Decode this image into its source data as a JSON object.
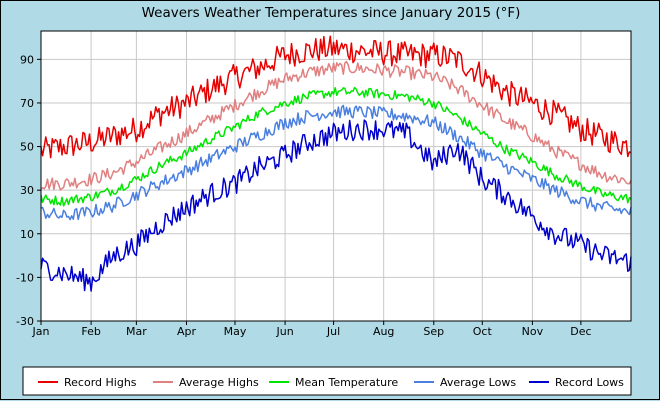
{
  "chart_data": {
    "type": "line",
    "title": "Weavers Weather Temperatures since January 2015 (°F)",
    "xlabel": "",
    "ylabel": "",
    "x_tick_labels": [
      "Jan",
      "Feb",
      "Mar",
      "Apr",
      "May",
      "Jun",
      "Jul",
      "Aug",
      "Sep",
      "Oct",
      "Nov",
      "Dec"
    ],
    "x_tick_days": [
      1,
      32,
      60,
      91,
      121,
      152,
      182,
      213,
      244,
      274,
      305,
      335
    ],
    "xlim_days": [
      1,
      366
    ],
    "y_ticks": [
      -30,
      -10,
      10,
      30,
      50,
      70,
      90
    ],
    "ylim": [
      -30,
      103
    ],
    "grid": true,
    "legend_position": "bottom",
    "series": [
      {
        "name": "Record Highs",
        "color": "#e60000",
        "days": [
          1,
          15,
          32,
          46,
          60,
          74,
          91,
          105,
          121,
          135,
          152,
          166,
          182,
          196,
          213,
          227,
          244,
          258,
          274,
          288,
          305,
          319,
          335,
          349,
          366
        ],
        "values": [
          48,
          50,
          52,
          55,
          58,
          65,
          70,
          76,
          82,
          86,
          92,
          94,
          95,
          94,
          93,
          92,
          92,
          90,
          83,
          75,
          70,
          65,
          58,
          54,
          50
        ]
      },
      {
        "name": "Average Highs",
        "color": "#e08080",
        "days": [
          1,
          15,
          32,
          46,
          60,
          74,
          91,
          105,
          121,
          135,
          152,
          166,
          182,
          196,
          213,
          227,
          244,
          258,
          274,
          288,
          305,
          319,
          335,
          349,
          366
        ],
        "values": [
          33,
          33,
          35,
          38,
          43,
          49,
          56,
          62,
          69,
          75,
          81,
          84,
          86,
          86,
          85,
          84,
          82,
          77,
          69,
          62,
          55,
          48,
          42,
          37,
          34
        ]
      },
      {
        "name": "Mean Temperature",
        "color": "#00e600",
        "days": [
          1,
          15,
          32,
          46,
          60,
          74,
          91,
          105,
          121,
          135,
          152,
          166,
          182,
          196,
          213,
          227,
          244,
          258,
          274,
          288,
          305,
          319,
          335,
          349,
          366
        ],
        "values": [
          26,
          25,
          27,
          30,
          35,
          41,
          47,
          53,
          59,
          65,
          70,
          73,
          75,
          75,
          74,
          73,
          70,
          64,
          56,
          49,
          43,
          37,
          32,
          28,
          26
        ]
      },
      {
        "name": "Average Lows",
        "color": "#4a7fe0",
        "days": [
          1,
          15,
          32,
          46,
          60,
          74,
          91,
          105,
          121,
          135,
          152,
          166,
          182,
          196,
          213,
          227,
          244,
          258,
          274,
          288,
          305,
          319,
          335,
          349,
          366
        ],
        "values": [
          20,
          18,
          20,
          23,
          28,
          33,
          39,
          44,
          50,
          55,
          61,
          64,
          66,
          66,
          65,
          64,
          61,
          55,
          47,
          41,
          35,
          30,
          25,
          22,
          20
        ]
      },
      {
        "name": "Record Lows",
        "color": "#0000cc",
        "days": [
          1,
          15,
          32,
          46,
          60,
          74,
          91,
          105,
          121,
          135,
          152,
          166,
          182,
          196,
          213,
          227,
          244,
          258,
          274,
          288,
          305,
          319,
          335,
          349,
          366
        ],
        "values": [
          -5,
          -8,
          -12,
          0,
          5,
          14,
          22,
          28,
          33,
          40,
          46,
          52,
          56,
          58,
          58,
          56,
          42,
          50,
          35,
          28,
          18,
          10,
          5,
          0,
          -3
        ]
      }
    ]
  }
}
